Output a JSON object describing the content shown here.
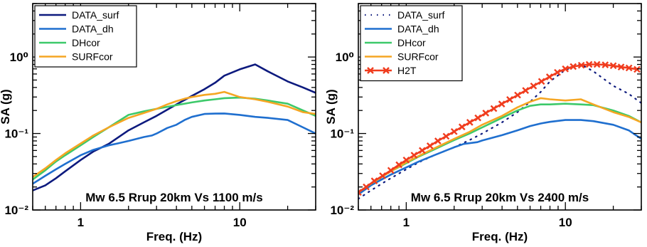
{
  "chart_data": [
    {
      "type": "line",
      "xscale": "log",
      "yscale": "log",
      "xlim": [
        0.5,
        30
      ],
      "ylim": [
        0.01,
        5
      ],
      "xlabel": "Freq. (Hz)",
      "ylabel": "SA (g)",
      "annotation": "Mw 6.5 Rrup 20km Vs 1100 m/s",
      "legend_position": "top-left",
      "grid": false,
      "series": [
        {
          "name": "DATA_surf",
          "color": "#0d1a7e",
          "style": "solid",
          "marker": "none",
          "x": [
            0.5,
            0.6,
            0.7,
            0.8,
            1.0,
            1.2,
            1.5,
            2.0,
            2.5,
            3.0,
            4.0,
            5.0,
            6.0,
            7.0,
            8.0,
            10.0,
            12.5,
            15.0,
            20.0,
            25.0,
            30.0
          ],
          "y": [
            0.018,
            0.021,
            0.026,
            0.032,
            0.045,
            0.058,
            0.073,
            0.11,
            0.14,
            0.17,
            0.24,
            0.31,
            0.38,
            0.46,
            0.57,
            0.69,
            0.8,
            0.65,
            0.48,
            0.4,
            0.34
          ]
        },
        {
          "name": "DATA_dh",
          "color": "#1f6fcf",
          "style": "solid",
          "marker": "none",
          "x": [
            0.5,
            0.6,
            0.7,
            0.8,
            1.0,
            1.2,
            1.5,
            1.7,
            2.0,
            2.5,
            2.8,
            3.0,
            3.5,
            4.0,
            4.5,
            5.0,
            6.0,
            7.0,
            8.0,
            10.0,
            12.5,
            15.0,
            20.0,
            25.0,
            30.0
          ],
          "y": [
            0.022,
            0.028,
            0.034,
            0.04,
            0.052,
            0.061,
            0.07,
            0.074,
            0.08,
            0.09,
            0.094,
            0.1,
            0.118,
            0.13,
            0.15,
            0.165,
            0.18,
            0.182,
            0.183,
            0.175,
            0.165,
            0.16,
            0.15,
            0.12,
            0.1
          ]
        },
        {
          "name": "DHcor",
          "color": "#3dc96a",
          "style": "solid",
          "marker": "none",
          "x": [
            0.5,
            0.6,
            0.7,
            0.8,
            1.0,
            1.2,
            1.5,
            2.0,
            2.5,
            3.0,
            4.0,
            5.0,
            6.0,
            7.0,
            8.0,
            10.0,
            12.5,
            15.0,
            20.0,
            25.0,
            30.0
          ],
          "y": [
            0.025,
            0.033,
            0.043,
            0.052,
            0.07,
            0.09,
            0.12,
            0.175,
            0.195,
            0.21,
            0.235,
            0.255,
            0.27,
            0.28,
            0.29,
            0.295,
            0.285,
            0.27,
            0.245,
            0.2,
            0.17
          ]
        },
        {
          "name": "SURFcor",
          "color": "#f5a623",
          "style": "solid",
          "marker": "none",
          "x": [
            0.5,
            0.6,
            0.7,
            0.8,
            1.0,
            1.2,
            1.5,
            2.0,
            2.5,
            3.0,
            3.5,
            4.0,
            4.5,
            5.0,
            6.0,
            7.0,
            8.0,
            10.0,
            12.5,
            15.0,
            20.0,
            25.0,
            30.0
          ],
          "y": [
            0.027,
            0.035,
            0.045,
            0.055,
            0.074,
            0.094,
            0.12,
            0.16,
            0.185,
            0.21,
            0.24,
            0.265,
            0.285,
            0.3,
            0.32,
            0.33,
            0.35,
            0.3,
            0.28,
            0.26,
            0.225,
            0.19,
            0.18
          ]
        }
      ]
    },
    {
      "type": "line",
      "xscale": "log",
      "yscale": "log",
      "xlim": [
        0.5,
        30
      ],
      "ylim": [
        0.01,
        5
      ],
      "xlabel": "Freq. (Hz)",
      "ylabel": "SA (g)",
      "annotation": "Mw 6.5 Rrup 20km Vs 2400 m/s",
      "legend_position": "top-left",
      "grid": false,
      "series": [
        {
          "name": "DATA_surf",
          "color": "#0d1a7e",
          "style": "dotted",
          "marker": "none",
          "x": [
            0.5,
            0.6,
            0.7,
            0.8,
            1.0,
            1.2,
            1.5,
            2.0,
            2.5,
            3.0,
            4.0,
            5.0,
            6.0,
            7.0,
            8.0,
            10.0,
            12.5,
            15.0,
            20.0,
            25.0,
            30.0
          ],
          "y": [
            0.014,
            0.018,
            0.022,
            0.026,
            0.034,
            0.042,
            0.052,
            0.066,
            0.082,
            0.1,
            0.14,
            0.19,
            0.26,
            0.35,
            0.48,
            0.68,
            0.8,
            0.65,
            0.42,
            0.33,
            0.25
          ]
        },
        {
          "name": "DATA_dh",
          "color": "#1f6fcf",
          "style": "solid",
          "marker": "none",
          "x": [
            0.5,
            0.6,
            0.7,
            0.8,
            1.0,
            1.2,
            1.5,
            2.0,
            2.3,
            2.8,
            3.0,
            4.0,
            5.0,
            6.0,
            7.0,
            8.0,
            10.0,
            12.5,
            15.0,
            20.0,
            25.0,
            30.0
          ],
          "y": [
            0.016,
            0.021,
            0.025,
            0.029,
            0.036,
            0.043,
            0.052,
            0.066,
            0.073,
            0.077,
            0.081,
            0.095,
            0.11,
            0.125,
            0.135,
            0.142,
            0.15,
            0.15,
            0.145,
            0.13,
            0.11,
            0.085
          ]
        },
        {
          "name": "DHcor",
          "color": "#3dc96a",
          "style": "solid",
          "marker": "none",
          "x": [
            0.5,
            0.6,
            0.7,
            0.8,
            1.0,
            1.2,
            1.5,
            2.0,
            2.5,
            3.0,
            4.0,
            5.0,
            6.0,
            7.0,
            8.0,
            10.0,
            12.5,
            15.0,
            20.0,
            25.0,
            30.0
          ],
          "y": [
            0.017,
            0.022,
            0.027,
            0.032,
            0.041,
            0.05,
            0.062,
            0.082,
            0.1,
            0.12,
            0.16,
            0.2,
            0.23,
            0.24,
            0.24,
            0.245,
            0.24,
            0.235,
            0.2,
            0.17,
            0.14
          ]
        },
        {
          "name": "SURFcor",
          "color": "#f5a623",
          "style": "solid",
          "marker": "none",
          "x": [
            0.5,
            0.6,
            0.7,
            0.8,
            1.0,
            1.2,
            1.5,
            2.0,
            2.5,
            3.0,
            4.0,
            5.0,
            6.0,
            7.0,
            8.0,
            10.0,
            12.5,
            15.0,
            20.0,
            25.0,
            30.0
          ],
          "y": [
            0.017,
            0.022,
            0.027,
            0.032,
            0.042,
            0.051,
            0.064,
            0.085,
            0.105,
            0.13,
            0.17,
            0.22,
            0.26,
            0.29,
            0.28,
            0.27,
            0.28,
            0.24,
            0.19,
            0.165,
            0.14
          ]
        },
        {
          "name": "H2T",
          "color": "#f03c1e",
          "style": "solid",
          "marker": "x",
          "x": [
            0.5,
            0.56,
            0.63,
            0.71,
            0.8,
            0.9,
            1.0,
            1.12,
            1.26,
            1.41,
            1.58,
            1.78,
            2.0,
            2.24,
            2.51,
            2.82,
            3.16,
            3.55,
            3.98,
            4.47,
            5.01,
            5.62,
            6.31,
            7.08,
            7.94,
            8.91,
            10.0,
            11.2,
            12.6,
            14.1,
            15.8,
            17.8,
            20.0,
            22.4,
            25.1,
            28.2
          ],
          "y": [
            0.017,
            0.02,
            0.024,
            0.028,
            0.033,
            0.039,
            0.045,
            0.052,
            0.06,
            0.069,
            0.08,
            0.092,
            0.106,
            0.122,
            0.14,
            0.16,
            0.185,
            0.212,
            0.243,
            0.278,
            0.318,
            0.365,
            0.418,
            0.48,
            0.55,
            0.63,
            0.7,
            0.75,
            0.78,
            0.8,
            0.8,
            0.79,
            0.77,
            0.74,
            0.72,
            0.69
          ]
        }
      ]
    }
  ]
}
